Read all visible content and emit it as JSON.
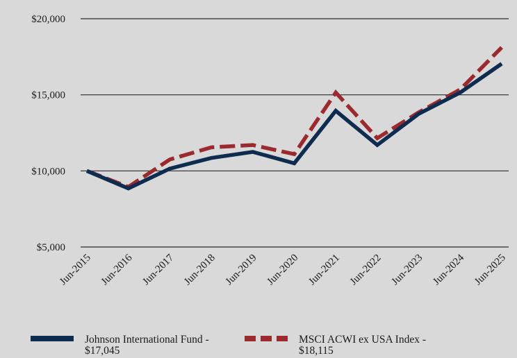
{
  "chart_data": {
    "type": "line",
    "categories": [
      "Jun-2015",
      "Jun-2016",
      "Jun-2017",
      "Jun-2018",
      "Jun-2019",
      "Jun-2020",
      "Jun-2021",
      "Jun-2022",
      "Jun-2023",
      "Jun-2024",
      "Jun-2025"
    ],
    "y_ticks": [
      "$5,000",
      "$10,000",
      "$15,000",
      "$20,000"
    ],
    "ylim": [
      5000,
      20000
    ],
    "grid": true,
    "legend_position": "bottom",
    "series": [
      {
        "name": "Johnson International Fund - $17,045",
        "legend_line1": "Johnson International Fund -",
        "legend_line2": "$17,045",
        "color": "#0d2c4f",
        "style": "solid",
        "values": [
          10000,
          8850,
          10150,
          10850,
          11250,
          10500,
          13950,
          11700,
          13750,
          15150,
          17045
        ]
      },
      {
        "name": "MSCI ACWI ex USA Index - $18,115",
        "legend_line1": "MSCI ACWI ex USA Index -",
        "legend_line2": "$18,115",
        "color": "#9b2a2e",
        "style": "dashed",
        "values": [
          10000,
          8950,
          10750,
          11550,
          11700,
          11100,
          15150,
          12150,
          13850,
          15350,
          18115
        ]
      }
    ]
  }
}
